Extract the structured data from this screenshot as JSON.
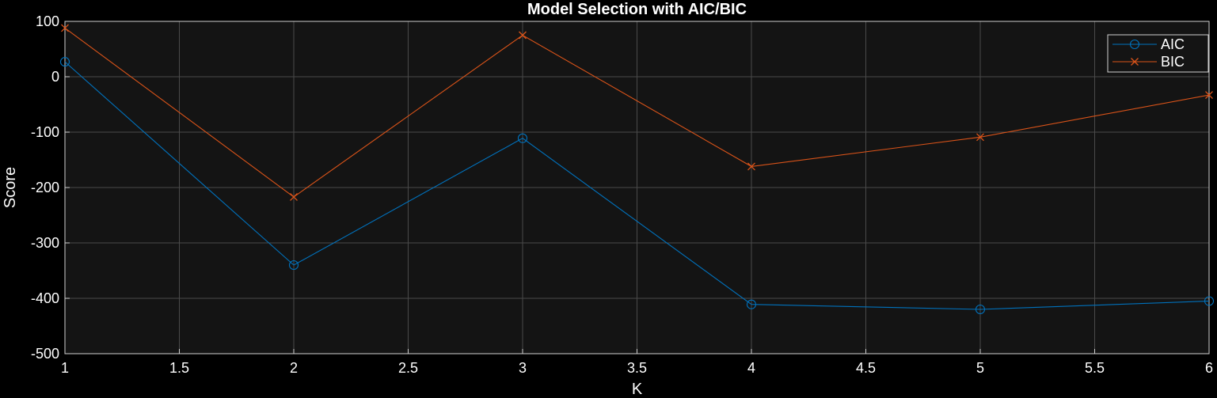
{
  "chart_data": {
    "type": "line",
    "title": "Model Selection with AIC/BIC",
    "xlabel": "K",
    "ylabel": "Score",
    "xlim": [
      1,
      6
    ],
    "ylim": [
      -500,
      100
    ],
    "xticks": [
      1,
      1.5,
      2,
      2.5,
      3,
      3.5,
      4,
      4.5,
      5,
      5.5,
      6
    ],
    "yticks": [
      -500,
      -400,
      -300,
      -200,
      -100,
      0,
      100
    ],
    "grid": true,
    "legend_position": "top-right",
    "x": [
      1,
      2,
      3,
      4,
      5,
      6
    ],
    "series": [
      {
        "name": "AIC",
        "marker": "circle",
        "color": "#0072BD",
        "values": [
          27,
          -340,
          -111,
          -411,
          -420,
          -405
        ]
      },
      {
        "name": "BIC",
        "marker": "x",
        "color": "#D95319",
        "values": [
          88,
          -217,
          75,
          -162,
          -109,
          -33
        ]
      }
    ]
  },
  "colors": {
    "figure_background": "#000000",
    "axes_background": "#141414",
    "grid": "#4a4a4a",
    "text": "#ffffff"
  }
}
